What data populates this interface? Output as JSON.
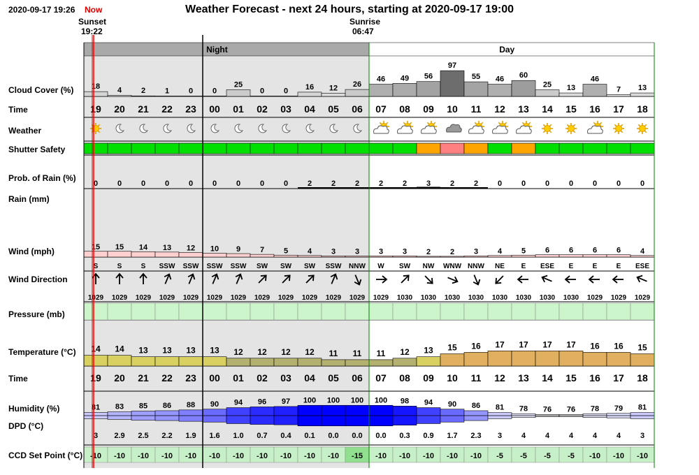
{
  "header": {
    "datetime": "2020-09-17 19:26",
    "now_label": "Now",
    "title": "Weather Forecast - next 24 hours, starting at 2020-09-17 19:00",
    "sunset_label": "Sunset",
    "sunset_time": "19:22",
    "sunrise_label": "Sunrise",
    "sunrise_time": "06:47",
    "night_label": "Night",
    "day_label": "Day"
  },
  "row_labels": {
    "cloud": "Cloud Cover (%)",
    "time": "Time",
    "weather": "Weather",
    "shutter": "Shutter Safety",
    "rain_prob": "Prob. of Rain (%)",
    "rain": "Rain (mm)",
    "wind": "Wind (mph)",
    "wind_dir": "Wind Direction",
    "pressure": "Pressure (mb)",
    "temperature": "Temperature (°C)",
    "time2": "Time",
    "humidity": "Humidity (%)",
    "dpd": "DPD (°C)",
    "ccd": "CCD Set Point (°C)"
  },
  "colors": {
    "night_bg": "#e4e4e4",
    "safe": "#00e000",
    "caution": "#ffa500",
    "unsafe": "#ff8080",
    "ccd_bg": "#c8f0c8",
    "ccd_hi": "#90e090",
    "pressure_bg": "#ccf5cc",
    "sunset_line": "#cc0000",
    "now_line": "#ff0000",
    "day_border": "#008000"
  },
  "chart_data": {
    "type": "table",
    "hours": [
      "19",
      "20",
      "21",
      "22",
      "23",
      "00",
      "01",
      "02",
      "03",
      "04",
      "05",
      "06",
      "07",
      "08",
      "09",
      "10",
      "11",
      "12",
      "13",
      "14",
      "15",
      "16",
      "17",
      "18"
    ],
    "cloud_cover": [
      18,
      4,
      2,
      1,
      0,
      0,
      25,
      0,
      0,
      16,
      12,
      26,
      46,
      49,
      56,
      97,
      55,
      46,
      60,
      25,
      13,
      46,
      7,
      13
    ],
    "weather_icons": [
      "sun",
      "moon",
      "moon",
      "moon",
      "moon",
      "moon",
      "moon",
      "moon",
      "moon",
      "moon",
      "moon",
      "moon",
      "partly-cloudy-day",
      "partly-cloudy-day",
      "partly-cloudy-day",
      "cloudy",
      "partly-cloudy-day",
      "partly-cloudy-day",
      "partly-cloudy-day",
      "sun",
      "sun",
      "partly-cloudy-day",
      "sun",
      "sun"
    ],
    "shutter_safety": [
      "safe",
      "safe",
      "safe",
      "safe",
      "safe",
      "safe",
      "safe",
      "safe",
      "safe",
      "safe",
      "safe",
      "safe",
      "safe",
      "safe",
      "caution",
      "unsafe",
      "caution",
      "safe",
      "caution",
      "safe",
      "safe",
      "safe",
      "safe",
      "safe"
    ],
    "rain_probability": [
      0,
      0,
      0,
      0,
      0,
      0,
      0,
      0,
      0,
      2,
      2,
      2,
      2,
      2,
      3,
      2,
      2,
      0,
      0,
      0,
      0,
      0,
      0,
      0
    ],
    "rain_mm": [
      0,
      0,
      0,
      0,
      0,
      0,
      0,
      0,
      0,
      0,
      0,
      0,
      0,
      0,
      0,
      0,
      0,
      0,
      0,
      0,
      0,
      0,
      0,
      0
    ],
    "wind_mph": [
      15,
      15,
      14,
      13,
      12,
      10,
      9,
      7,
      5,
      4,
      3,
      3,
      3,
      3,
      2,
      2,
      3,
      4,
      5,
      6,
      6,
      6,
      6,
      4
    ],
    "wind_direction": [
      "S",
      "S",
      "S",
      "SSW",
      "SSW",
      "SSW",
      "SSW",
      "SW",
      "SW",
      "SW",
      "SSW",
      "NNW",
      "W",
      "SW",
      "NW",
      "WNW",
      "NNW",
      "NE",
      "E",
      "ESE",
      "E",
      "E",
      "E",
      "ESE"
    ],
    "pressure_mb": [
      1029,
      1029,
      1029,
      1029,
      1029,
      1029,
      1029,
      1029,
      1029,
      1029,
      1029,
      1029,
      1029,
      1030,
      1030,
      1030,
      1030,
      1030,
      1030,
      1030,
      1030,
      1029,
      1029,
      1029
    ],
    "temperature_c": [
      14,
      14,
      13,
      13,
      13,
      13,
      12,
      12,
      12,
      12,
      11,
      11,
      11,
      12,
      13,
      15,
      16,
      17,
      17,
      17,
      17,
      16,
      16,
      15
    ],
    "humidity_pct": [
      81,
      83,
      85,
      86,
      88,
      90,
      94,
      96,
      97,
      100,
      100,
      100,
      100,
      98,
      94,
      90,
      86,
      81,
      78,
      76,
      76,
      78,
      79,
      81
    ],
    "dpd_c": [
      "3",
      "2.9",
      "2.5",
      "2.2",
      "1.9",
      "1.6",
      "1.0",
      "0.7",
      "0.4",
      "0.1",
      "0.0",
      "0.0",
      "0.0",
      "0.3",
      "0.9",
      "1.7",
      "2.3",
      "3",
      "4",
      "4",
      "4",
      "4",
      "4",
      "3"
    ],
    "ccd_set_point": [
      -10,
      -10,
      -10,
      -10,
      -10,
      -10,
      -10,
      -10,
      -10,
      -10,
      -10,
      -15,
      -10,
      -10,
      -10,
      -10,
      -10,
      -5,
      -5,
      -5,
      -5,
      -10,
      -10,
      -10
    ],
    "night_hours": 12
  }
}
